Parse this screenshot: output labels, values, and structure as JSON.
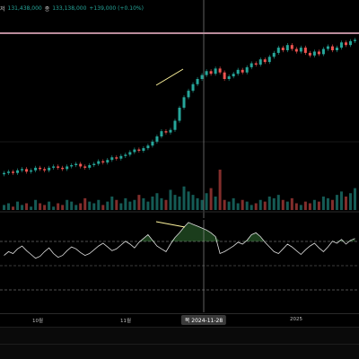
{
  "header": {
    "open_label": "저",
    "open_value": "131,438,000",
    "close_label": "종",
    "close_value": "133,138,000",
    "change": "+139,000 (+0.10%)"
  },
  "time_axis": {
    "labels": [
      "10월",
      "11월",
      "2025"
    ],
    "crosshair_date": "목 2024-11-28"
  },
  "colors": {
    "up": "#26a69a",
    "down": "#ef5350",
    "background": "#000000",
    "indicator_line": "#e0e0e0",
    "indicator_fill": "#4caf50",
    "trendline": "#fff59d",
    "resistance_line": "#f8bbd0",
    "crosshair": "#9e9e9e"
  },
  "chart_data": [
    {
      "type": "candlestick",
      "series": [
        {
          "name": "",
          "values": [
            100,
            101,
            100,
            102,
            103,
            101,
            102,
            104,
            103,
            102,
            104,
            105,
            104,
            103,
            105,
            106,
            107,
            105,
            104,
            106,
            107,
            109,
            108,
            110,
            112,
            111,
            113,
            114,
            116,
            118,
            117,
            119,
            121,
            124,
            128,
            132,
            131,
            133,
            140,
            150,
            158,
            163,
            168,
            172,
            175,
            178,
            176,
            180,
            177,
            172,
            174,
            176,
            179,
            177,
            181,
            184,
            183,
            187,
            185,
            189,
            192,
            196,
            194,
            198,
            195,
            193,
            196,
            192,
            190,
            193,
            191,
            195,
            197,
            194,
            196,
            200,
            198,
            201,
            202
          ]
        }
      ],
      "annotations": [
        "resistance line",
        "rising trendline"
      ]
    },
    {
      "type": "bar",
      "series": [
        {
          "name": "",
          "values": [
            3,
            4,
            2,
            5,
            3,
            4,
            2,
            6,
            4,
            3,
            5,
            2,
            4,
            3,
            6,
            5,
            3,
            4,
            7,
            5,
            4,
            6,
            3,
            5,
            8,
            6,
            4,
            7,
            5,
            6,
            9,
            7,
            5,
            8,
            10,
            7,
            6,
            12,
            9,
            8,
            14,
            11,
            9,
            7,
            6,
            10,
            13,
            8,
            24,
            6,
            5,
            7,
            4,
            6,
            5,
            3,
            4,
            6,
            5,
            8,
            7,
            9,
            6,
            5,
            7,
            4,
            3,
            5,
            4,
            6,
            5,
            8,
            7,
            6,
            9,
            11,
            8,
            10,
            13
          ]
        }
      ]
    },
    {
      "type": "line",
      "series": [
        {
          "name": "",
          "values": [
            48,
            52,
            50,
            55,
            58,
            53,
            49,
            45,
            47,
            52,
            56,
            50,
            46,
            48,
            53,
            57,
            55,
            51,
            48,
            50,
            54,
            58,
            61,
            57,
            53,
            55,
            59,
            63,
            60,
            56,
            62,
            66,
            70,
            64,
            58,
            55,
            52,
            60,
            67,
            72,
            78,
            83,
            81,
            79,
            77,
            75,
            72,
            68,
            50,
            52,
            55,
            58,
            62,
            60,
            64,
            70,
            72,
            68,
            62,
            57,
            52,
            50,
            55,
            60,
            57,
            53,
            49,
            54,
            58,
            61,
            56,
            52,
            57,
            63,
            61,
            65,
            60,
            64,
            66
          ]
        }
      ],
      "reference_levels": [
        "upper",
        "middle",
        "lower"
      ]
    }
  ]
}
